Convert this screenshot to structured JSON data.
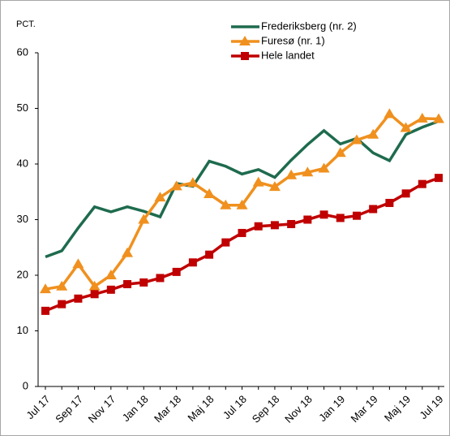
{
  "chart_data": {
    "type": "line",
    "y_label": "PCT.",
    "categories": [
      "Jul 17",
      null,
      "Sep 17",
      null,
      "Nov 17",
      null,
      "Jan 18",
      null,
      "Mar 18",
      null,
      "Maj 18",
      null,
      "Jul 18",
      null,
      "Sep 18",
      null,
      "Nov 18",
      null,
      "Jan 19",
      null,
      "Mar 19",
      null,
      "Maj 19",
      null,
      "Jul 19"
    ],
    "series": [
      {
        "name": "Frederiksberg (nr. 2)",
        "color": "#1e6b4e",
        "marker": "none",
        "values": [
          23.3,
          24.4,
          28.5,
          32.3,
          31.4,
          32.3,
          31.5,
          30.5,
          36.5,
          36,
          40.5,
          39.6,
          38.2,
          39,
          37.6,
          40.7,
          43.5,
          46,
          43.6,
          44.6,
          42,
          40.6,
          45.3,
          46.6,
          47.7
        ]
      },
      {
        "name": "Furesø (nr. 1)",
        "color": "#f0901e",
        "marker": "triangle",
        "values": [
          17.5,
          18,
          22,
          18,
          20,
          24,
          30,
          34,
          36,
          36.6,
          34.6,
          32.6,
          32.6,
          36.7,
          35.9,
          38,
          38.5,
          39.2,
          42,
          44.3,
          45.3,
          49,
          46.5,
          48.2,
          48.1
        ]
      },
      {
        "name": "Hele landet",
        "color": "#c00000",
        "marker": "square",
        "values": [
          13.6,
          14.8,
          15.8,
          16.6,
          17.4,
          18.4,
          18.7,
          19.5,
          20.6,
          22.3,
          23.7,
          25.9,
          27.6,
          28.8,
          29,
          29.2,
          30,
          30.9,
          30.3,
          30.7,
          31.9,
          33,
          34.7,
          36.4,
          37.5
        ]
      }
    ],
    "ylim": [
      0,
      60
    ],
    "yticks": [
      0,
      10,
      20,
      30,
      40,
      50,
      60
    ],
    "grid": false
  }
}
